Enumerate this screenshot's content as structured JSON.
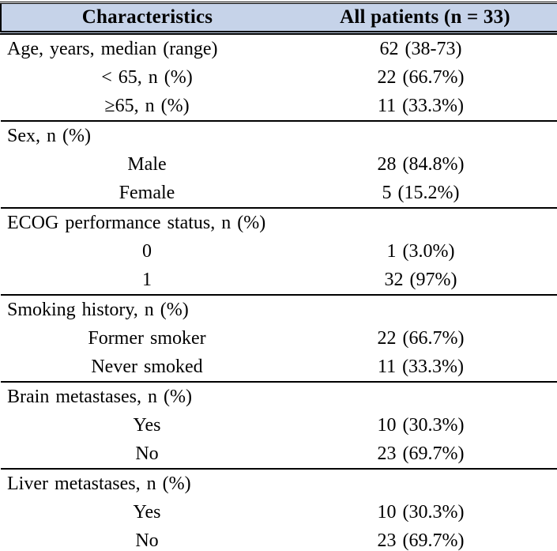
{
  "colors": {
    "header_bg": "#c6d3e9",
    "border": "#000000",
    "text": "#000000"
  },
  "table": {
    "header": {
      "col1": "Characteristics",
      "col2": "All patients (n = 33)"
    },
    "sections": [
      {
        "rows": [
          {
            "label": "Age, years, median (range)",
            "value": "62 (38-73)"
          },
          {
            "label": "< 65, n (%)",
            "value": "22 (66.7%)"
          },
          {
            "label": "≥65, n (%)",
            "value": "11 (33.3%)"
          }
        ]
      },
      {
        "rows": [
          {
            "label": "Sex, n (%)",
            "value": ""
          },
          {
            "label": "Male",
            "value": "28 (84.8%)"
          },
          {
            "label": "Female",
            "value": "5 (15.2%)"
          }
        ]
      },
      {
        "rows": [
          {
            "label": "ECOG performance status, n (%)",
            "value": ""
          },
          {
            "label": "0",
            "value": "1 (3.0%)"
          },
          {
            "label": "1",
            "value": "32 (97%)"
          }
        ]
      },
      {
        "rows": [
          {
            "label": "Smoking history, n (%)",
            "value": ""
          },
          {
            "label": "Former smoker",
            "value": "22 (66.7%)"
          },
          {
            "label": "Never smoked",
            "value": "11 (33.3%)"
          }
        ]
      },
      {
        "rows": [
          {
            "label": "Brain metastases, n (%)",
            "value": ""
          },
          {
            "label": "Yes",
            "value": "10 (30.3%)"
          },
          {
            "label": "No",
            "value": "23 (69.7%)"
          }
        ]
      },
      {
        "rows": [
          {
            "label": "Liver metastases, n (%)",
            "value": ""
          },
          {
            "label": "Yes",
            "value": "10 (30.3%)"
          },
          {
            "label": "No",
            "value": "23 (69.7%)"
          }
        ]
      }
    ]
  }
}
